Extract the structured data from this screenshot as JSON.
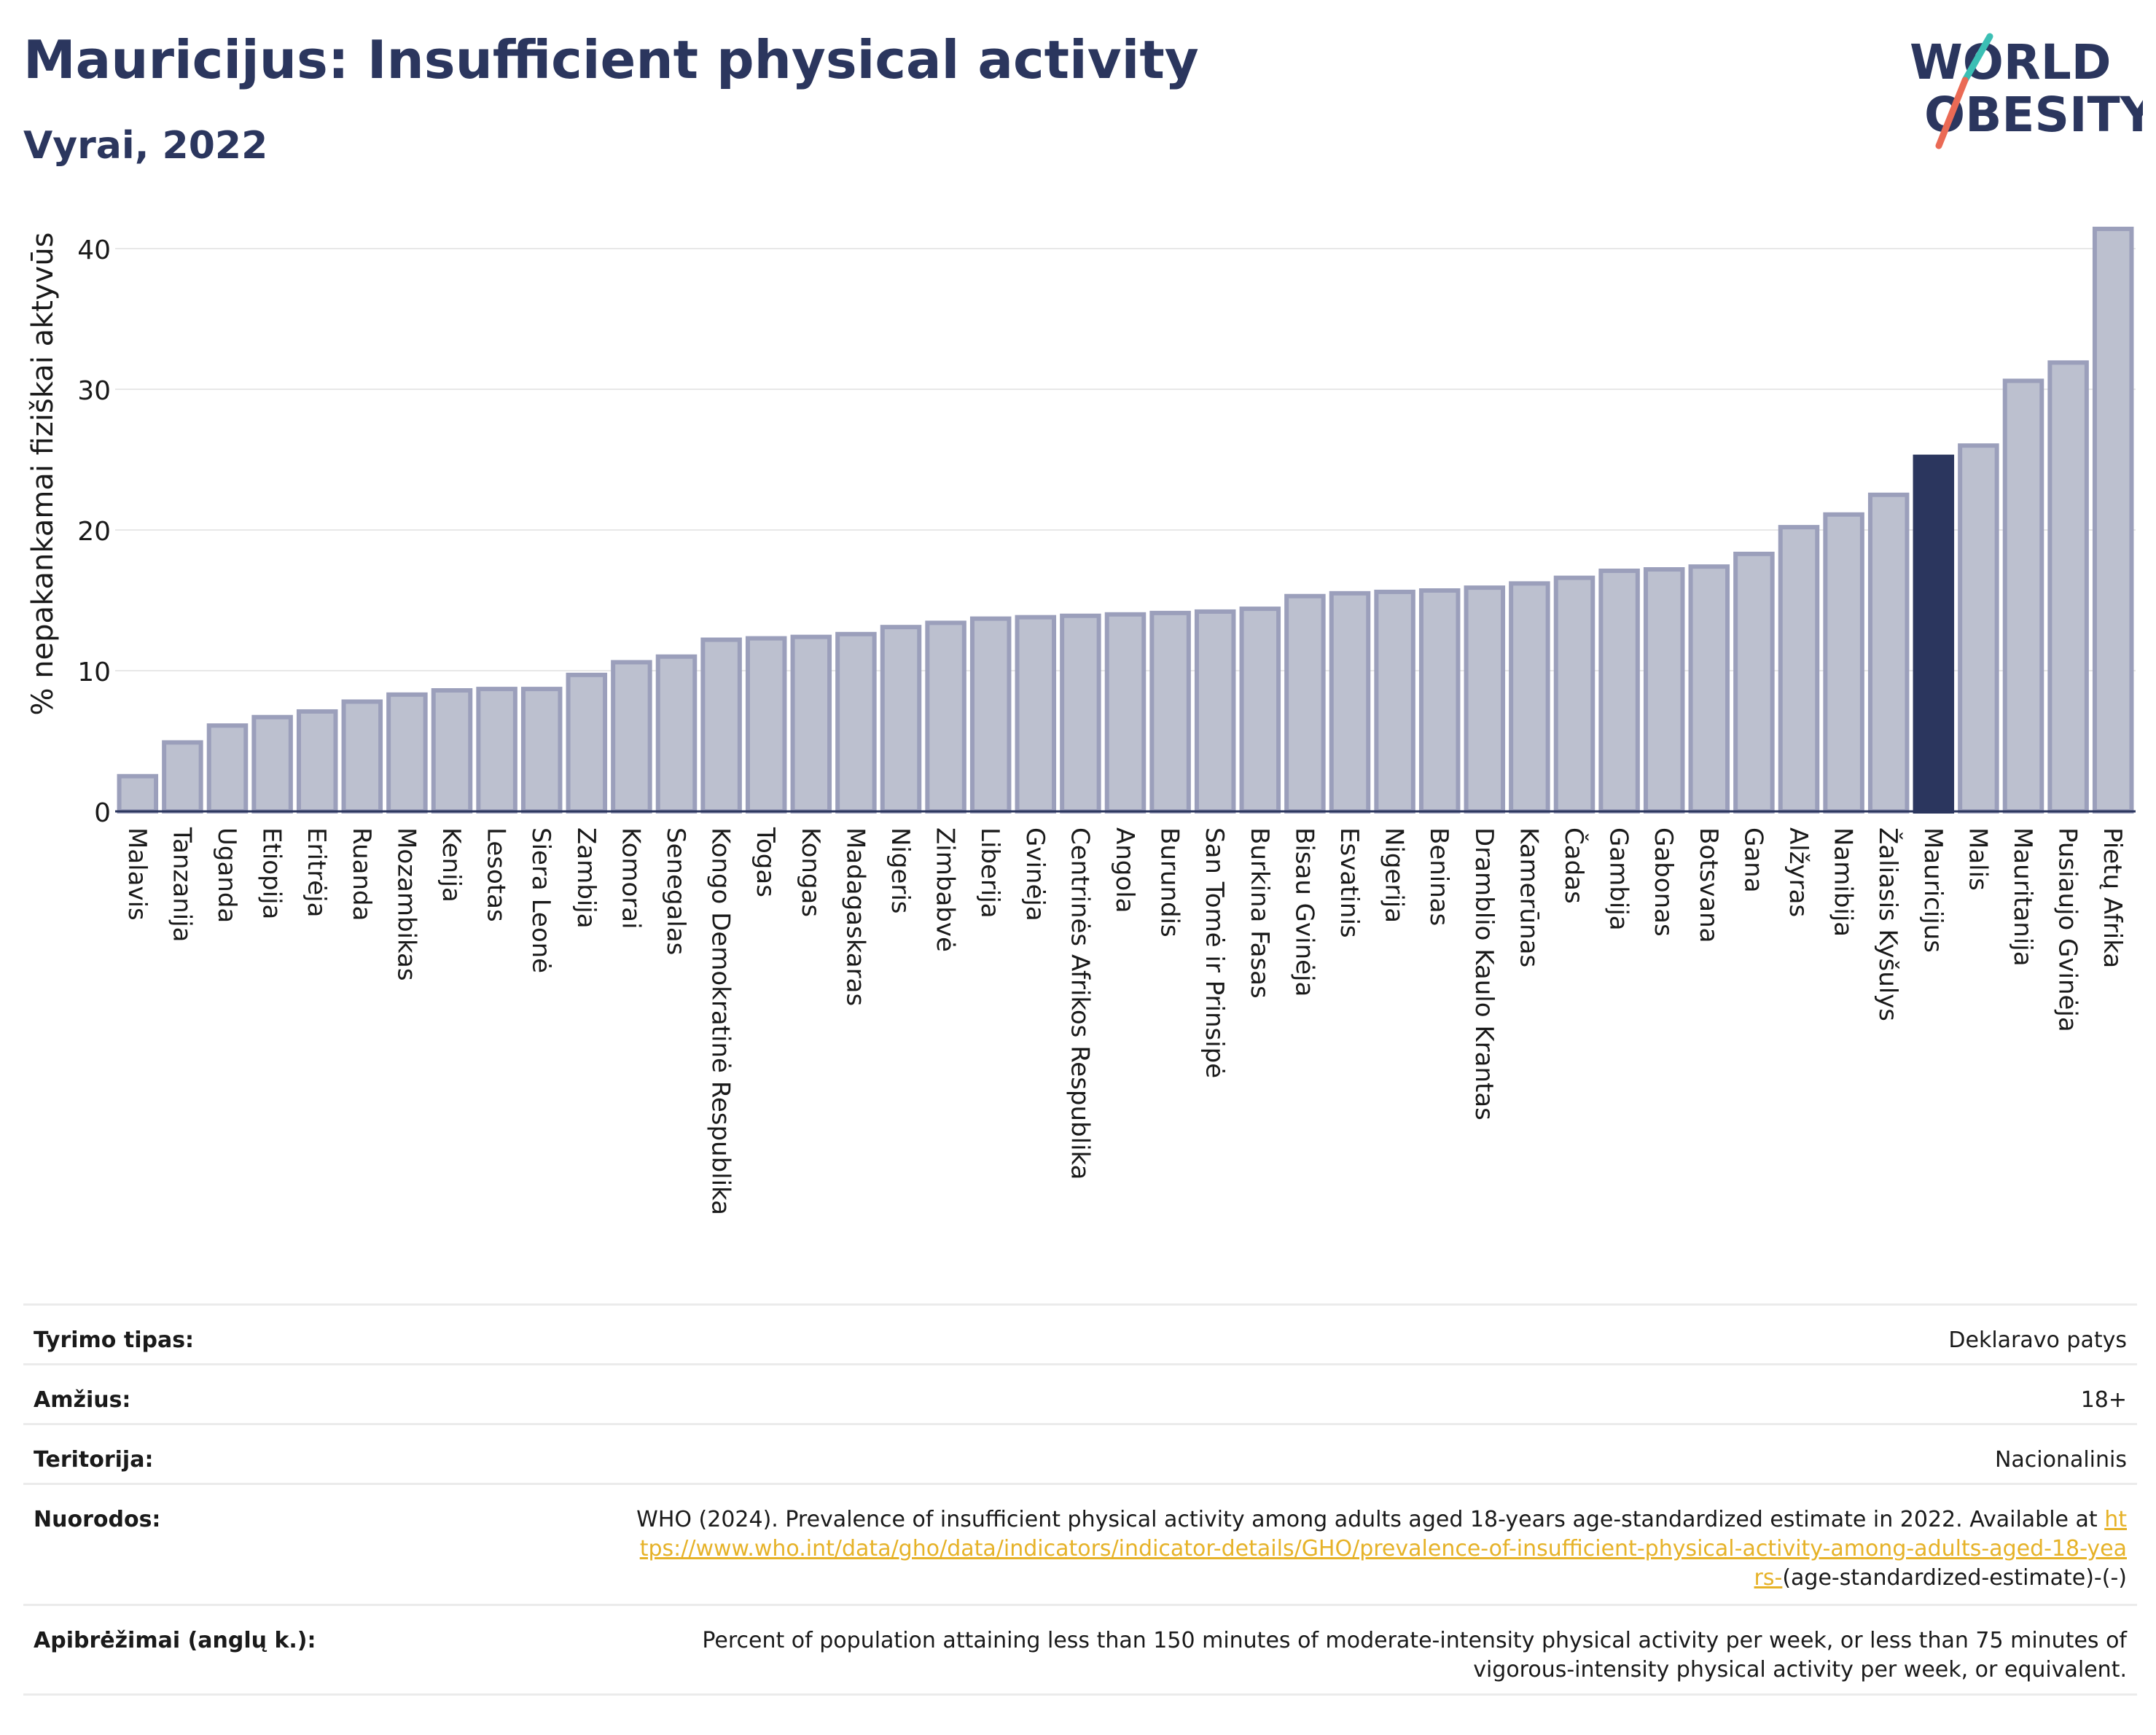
{
  "header": {
    "title": "Mauricijus: Insufficient physical activity",
    "subtitle": "Vyrai, 2022"
  },
  "logo": {
    "line1": "WORLD",
    "line2": "OBESITY",
    "colors": {
      "text": "#2b365e",
      "slash_teal": "#3bbfb4",
      "slash_coral": "#ea6a55"
    }
  },
  "chart_data": {
    "type": "bar",
    "ylabel": "% nepakankamai fiziškai aktyvūs",
    "ylim": [
      0,
      42
    ],
    "yticks": [
      0,
      10,
      20,
      30,
      40
    ],
    "grid": true,
    "highlight": "Mauricijus",
    "colors": {
      "bar": "#bcc0cf",
      "bar_edge": "#9b9fbb",
      "highlight": "#2b365e",
      "grid": "#e8e8e8",
      "axis": "#2b365e"
    },
    "categories": [
      "Malavis",
      "Tanzanija",
      "Uganda",
      "Etiopija",
      "Eritrėja",
      "Ruanda",
      "Mozambikas",
      "Kenija",
      "Lesotas",
      "Siera Leonė",
      "Zambija",
      "Komorai",
      "Senegalas",
      "Kongo Demokratinė Respublika",
      "Togas",
      "Kongas",
      "Madagaskaras",
      "Nigeris",
      "Zimbabvė",
      "Liberija",
      "Gvinėja",
      "Centrinės Afrikos Respublika",
      "Angola",
      "Burundis",
      "San Tomė ir Prinsipė",
      "Burkina Fasas",
      "Bisau Gvinėja",
      "Esvatinis",
      "Nigerija",
      "Beninas",
      "Dramblio Kaulo Krantas",
      "Kamerūnas",
      "Čadas",
      "Gambija",
      "Gabonas",
      "Botsvana",
      "Gana",
      "Alžyras",
      "Namibija",
      "Žaliasis Kyšulys",
      "Mauricijus",
      "Malis",
      "Mauritanija",
      "Pusiaujo Gvinėja",
      "Pietų Afrika"
    ],
    "values": [
      2.5,
      4.9,
      6.1,
      6.7,
      7.1,
      7.8,
      8.3,
      8.6,
      8.7,
      8.7,
      9.7,
      10.6,
      11.0,
      12.2,
      12.3,
      12.4,
      12.6,
      13.1,
      13.4,
      13.7,
      13.8,
      13.9,
      14.0,
      14.1,
      14.2,
      14.4,
      15.3,
      15.5,
      15.6,
      15.7,
      15.9,
      16.2,
      16.6,
      17.1,
      17.2,
      17.4,
      18.3,
      20.2,
      21.1,
      22.5,
      25.2,
      26.0,
      30.6,
      31.9,
      41.4
    ]
  },
  "meta": {
    "rows": [
      {
        "label": "Tyrimo tipas:",
        "value": "Deklaravo patys"
      },
      {
        "label": "Amžius:",
        "value": "18+"
      },
      {
        "label": "Teritorija:",
        "value": "Nacionalinis"
      },
      {
        "label": "Nuorodos:",
        "value": "WHO (2024). Prevalence of insufficient physical activity among adults aged 18-years age-standardized estimate in 2022. Available at ",
        "link": "https://www.who.int/data/gho/data/indicators/indicator-details/GHO/prevalence-of-insufficient-physical-activity-among-adults-aged-18-years-",
        "value_after": "(age-standardized-estimate)-(-)"
      },
      {
        "label": "Apibrėžimai (anglų k.):",
        "value": "Percent of population attaining less than 150 minutes of moderate-intensity physical activity per week, or less than 75 minutes of vigorous-intensity physical activity per week, or equivalent."
      }
    ]
  }
}
